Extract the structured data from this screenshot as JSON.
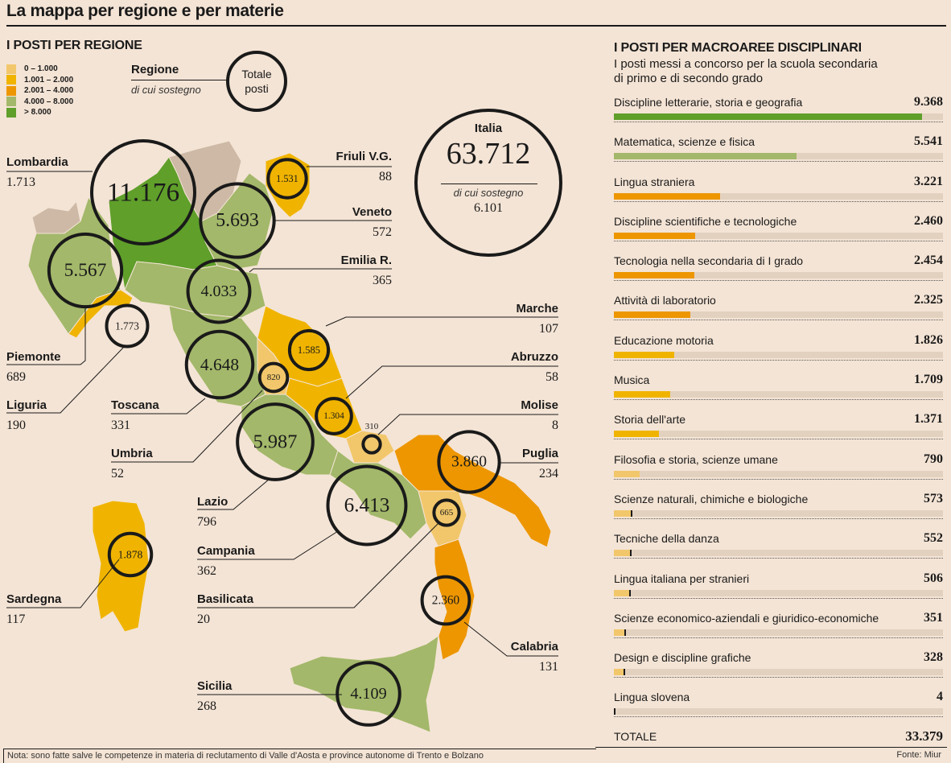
{
  "title": "La mappa per regione e per materie",
  "regions_section": {
    "title": "I POSTI PER REGIONE",
    "legend": [
      {
        "label": "0 – 1.000",
        "color": "#f2c76b"
      },
      {
        "label": "1.001 – 2.000",
        "color": "#f0b400"
      },
      {
        "label": "2.001 – 4.000",
        "color": "#ed9600"
      },
      {
        "label": "4.000 – 8.000",
        "color": "#a3b86a"
      },
      {
        "label": "> 8.000",
        "color": "#5f9f2a"
      }
    ],
    "key": {
      "region": "Regione",
      "sub": "di cui sostegno",
      "circle": "Totale posti"
    },
    "italia": {
      "name": "Italia",
      "total": "63.712",
      "sub_label": "di cui sostegno",
      "sub_value": "6.101"
    }
  },
  "chart_data": [
    {
      "type": "map",
      "title": "I POSTI PER REGIONE",
      "regions": [
        {
          "name": "Lombardia",
          "total": 11176,
          "total_label": "11.176",
          "sostegno": "1.713"
        },
        {
          "name": "Friuli V.G.",
          "total": 1531,
          "total_label": "1.531",
          "sostegno": "88"
        },
        {
          "name": "Veneto",
          "total": 5693,
          "total_label": "5.693",
          "sostegno": "572"
        },
        {
          "name": "Emilia R.",
          "total": 4033,
          "total_label": "4.033",
          "sostegno": "365"
        },
        {
          "name": "Piemonte",
          "total": 5567,
          "total_label": "5.567",
          "sostegno": "689"
        },
        {
          "name": "Liguria",
          "total": 1773,
          "total_label": "1.773",
          "sostegno": "190"
        },
        {
          "name": "Toscana",
          "total": 4648,
          "total_label": "4.648",
          "sostegno": "331"
        },
        {
          "name": "Umbria",
          "total": 820,
          "total_label": "820",
          "sostegno": "52"
        },
        {
          "name": "Marche",
          "total": 1585,
          "total_label": "1.585",
          "sostegno": "107"
        },
        {
          "name": "Abruzzo",
          "total": 1304,
          "total_label": "1.304",
          "sostegno": "58"
        },
        {
          "name": "Molise",
          "total": 310,
          "total_label": "310",
          "sostegno": "8"
        },
        {
          "name": "Lazio",
          "total": 5987,
          "total_label": "5.987",
          "sostegno": "796"
        },
        {
          "name": "Puglia",
          "total": 3860,
          "total_label": "3.860",
          "sostegno": "234"
        },
        {
          "name": "Campania",
          "total": 6413,
          "total_label": "6.413",
          "sostegno": "362"
        },
        {
          "name": "Basilicata",
          "total": 665,
          "total_label": "665",
          "sostegno": "20"
        },
        {
          "name": "Sardegna",
          "total": 1878,
          "total_label": "1.878",
          "sostegno": "117"
        },
        {
          "name": "Calabria",
          "total": 2360,
          "total_label": "2.360",
          "sostegno": "131"
        },
        {
          "name": "Sicilia",
          "total": 4109,
          "total_label": "4.109",
          "sostegno": "268"
        }
      ],
      "italia_total": 63712,
      "italia_sostegno": 6101
    },
    {
      "type": "bar",
      "title": "I POSTI PER MACROAREE DISCIPLINARI",
      "subtitle": "I posti messi a concorso per la scuola secondaria di primo e di secondo grado",
      "max": 10000,
      "categories": [
        "Discipline letterarie, storia e geografia",
        "Matematica, scienze e fisica",
        "Lingua straniera",
        "Discipline scientifiche e tecnologiche",
        "Tecnologia nella secondaria di I grado",
        "Attività di laboratorio",
        "Educazione motoria",
        "Musica",
        "Storia dell'arte",
        "Filosofia e storia, scienze umane",
        "Scienze naturali, chimiche e biologiche",
        "Tecniche della danza",
        "Lingua italiana per stranieri",
        "Scienze economico-aziendali e giuridico-economiche",
        "Design e discipline grafiche",
        "Lingua slovena"
      ],
      "values": [
        9368,
        5541,
        3221,
        2460,
        2454,
        2325,
        1826,
        1709,
        1371,
        790,
        573,
        552,
        506,
        351,
        328,
        4
      ],
      "value_labels": [
        "9.368",
        "5.541",
        "3.221",
        "2.460",
        "2.454",
        "2.325",
        "1.826",
        "1.709",
        "1.371",
        "790",
        "573",
        "552",
        "506",
        "351",
        "328",
        "4"
      ],
      "total_label": "TOTALE",
      "total": "33.379"
    }
  ],
  "bars_section": {
    "title": "I POSTI PER MACROAREE DISCIPLINARI",
    "subtitle_line1": "I posti messi a concorso per la scuola secondaria",
    "subtitle_line2": "di primo e di secondo grado"
  },
  "footer": {
    "note": "Nota: sono fatte salve le competenze in materia di reclutamento di Valle d'Aosta e province autonome di Trento e Bolzano",
    "source": "Fonte: Miur"
  }
}
